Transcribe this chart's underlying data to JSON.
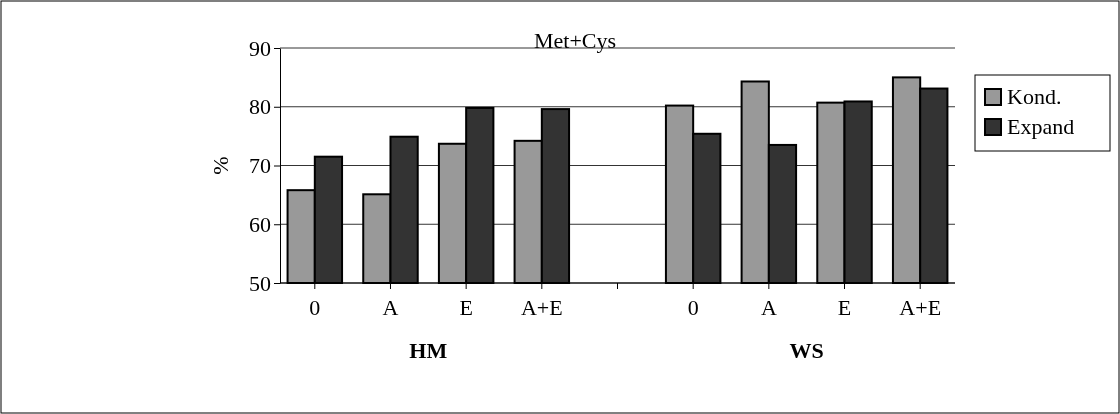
{
  "chart_data": {
    "type": "bar",
    "title": "Met+Cys",
    "ylabel": "%",
    "categories": [
      "0",
      "A",
      "E",
      "A+E",
      null,
      "0",
      "A",
      "E",
      "A+E"
    ],
    "series": [
      {
        "name": "Kond.",
        "color": "#999999",
        "values": [
          65.8,
          65.1,
          73.7,
          74.2,
          null,
          80.2,
          84.3,
          80.7,
          85
        ]
      },
      {
        "name": "Expand",
        "color": "#333333",
        "values": [
          71.5,
          74.9,
          79.8,
          79.6,
          null,
          75.4,
          73.5,
          80.9,
          83.1
        ]
      }
    ],
    "ylim": [
      50,
      90
    ],
    "yticks": [
      50,
      60,
      70,
      80,
      90
    ],
    "grid": "y",
    "legend": "right",
    "annotations": [
      "HM",
      "WS"
    ]
  }
}
